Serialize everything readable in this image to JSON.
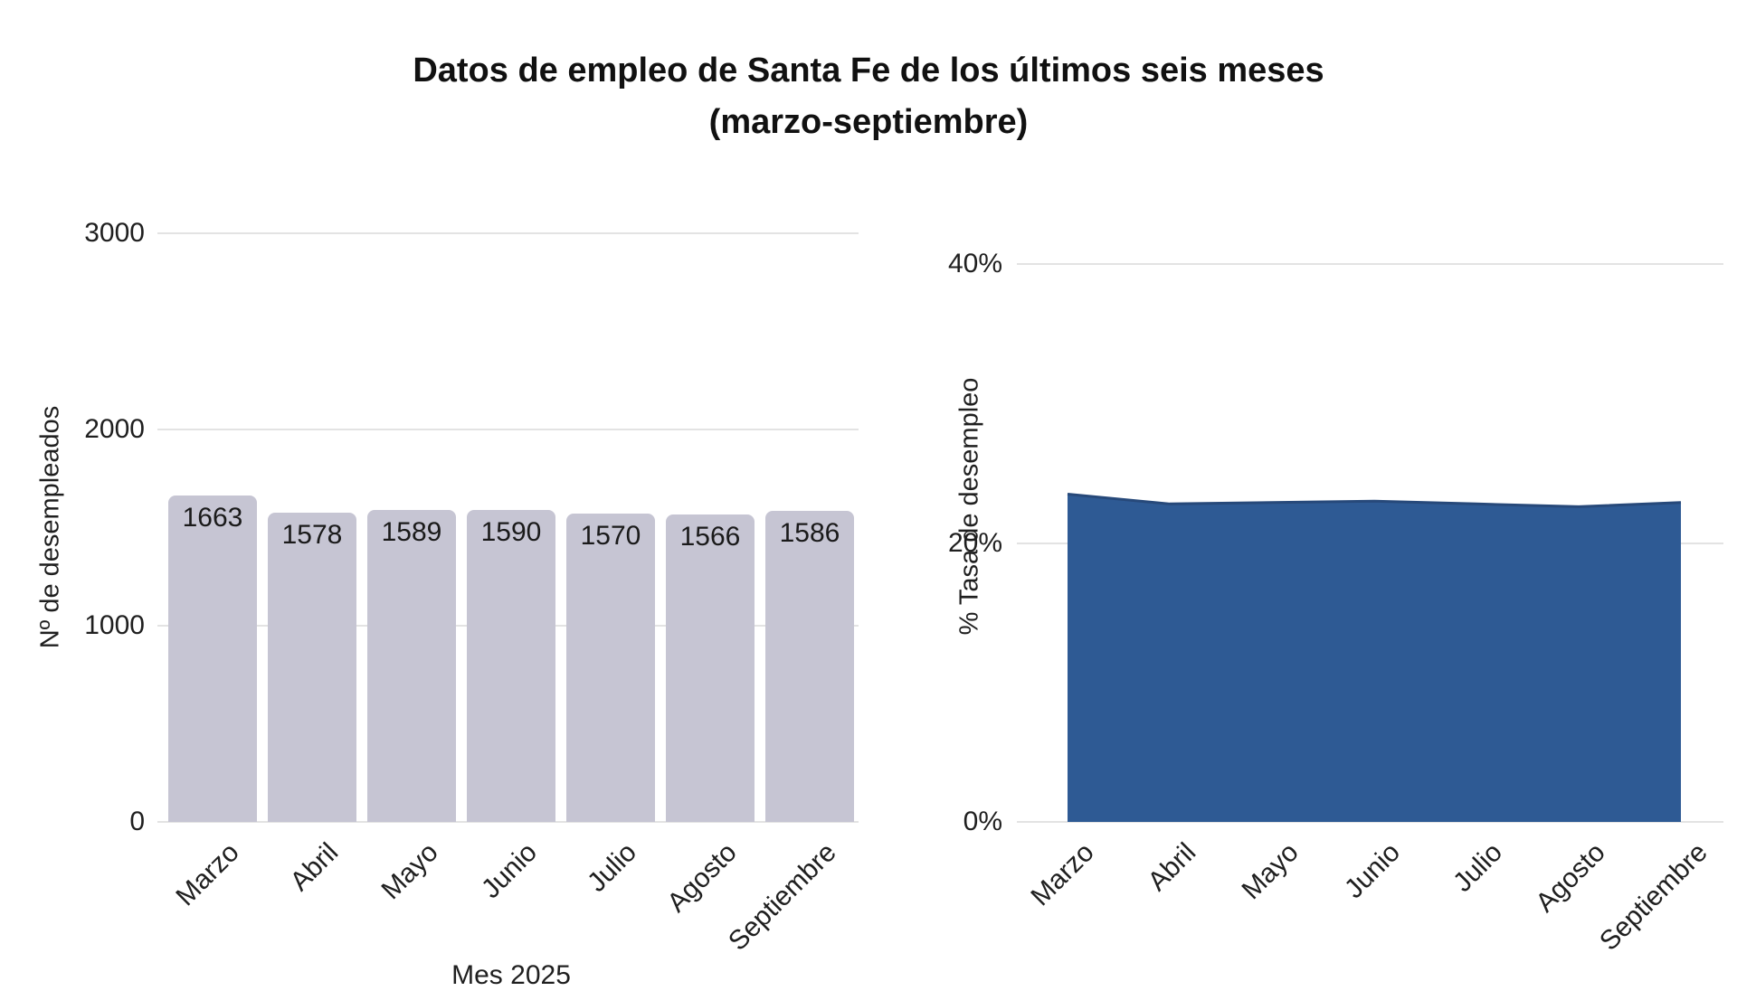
{
  "title": {
    "line1": "Datos de empleo de Santa Fe de los últimos seis meses",
    "line2": "(marzo-septiembre)"
  },
  "colors": {
    "bar": "#c6c5d3",
    "area": "#2e5a94",
    "area_edge": "#27497a",
    "grid": "#e3e3e3",
    "text": "#1f1f1f"
  },
  "chart_data": [
    {
      "type": "bar",
      "categories": [
        "Marzo",
        "Abril",
        "Mayo",
        "Junio",
        "Julio",
        "Agosto",
        "Septiembre"
      ],
      "values": [
        1663,
        1578,
        1589,
        1590,
        1570,
        1566,
        1586
      ],
      "ylabel": "Nº de desempleados",
      "xlabel": "Mes 2025",
      "yticks": [
        "0",
        "1000",
        "2000",
        "3000"
      ],
      "ytick_values": [
        0,
        1000,
        2000,
        3000
      ],
      "ylim": [
        0,
        3000
      ],
      "grid": true,
      "legend": "none"
    },
    {
      "type": "area",
      "categories": [
        "Marzo",
        "Abril",
        "Mayo",
        "Junio",
        "Julio",
        "Agosto",
        "Septiembre"
      ],
      "values": [
        23.5,
        22.8,
        22.9,
        23.0,
        22.8,
        22.6,
        22.9
      ],
      "ylabel": "% Tasa de desempleo",
      "xlabel": "",
      "yticks": [
        "0%",
        "20%",
        "40%"
      ],
      "ytick_values": [
        0,
        20,
        40
      ],
      "ylim": [
        0,
        40
      ],
      "grid": true,
      "legend": "none"
    }
  ]
}
